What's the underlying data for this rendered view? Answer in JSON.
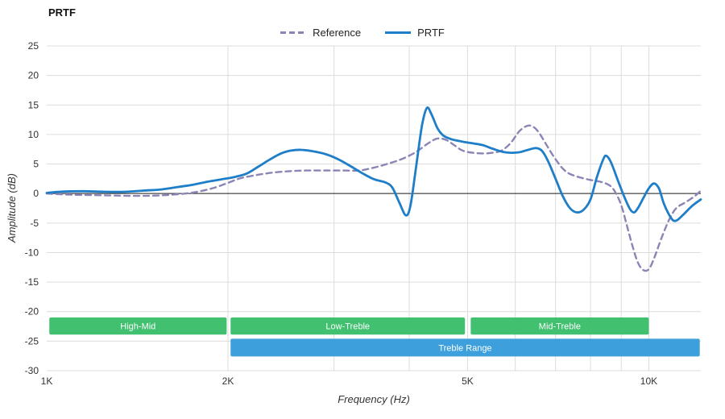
{
  "title": "PRTF",
  "legend": [
    {
      "label": "Reference",
      "color": "#8a85b5",
      "dashed": true
    },
    {
      "label": "PRTF",
      "color": "#1e7ec8",
      "dashed": false
    }
  ],
  "chart_data": {
    "type": "line",
    "title": "PRTF",
    "xlabel": "Frequency (Hz)",
    "ylabel": "Amplitude (dB)",
    "x_scale": "log",
    "xlim": [
      1000,
      12200
    ],
    "ylim": [
      -30,
      25
    ],
    "grid": true,
    "legend_position": "top-center",
    "y_ticks": [
      25,
      20,
      15,
      10,
      5,
      0,
      -5,
      -10,
      -15,
      -20,
      -25,
      -30
    ],
    "x_ticks": [
      {
        "value": 1000,
        "label": "1K"
      },
      {
        "value": 2000,
        "label": "2K"
      },
      {
        "value": 5000,
        "label": "5K"
      },
      {
        "value": 10000,
        "label": "10K"
      }
    ],
    "x_gridlines": [
      2000,
      3000,
      4000,
      5000,
      6000,
      7000,
      8000,
      9000,
      10000
    ],
    "colors": {
      "grid": "#dcdcdc",
      "zero_line": "#1a1a1a",
      "tick_text": "#333333",
      "band_text": "#ffffff"
    },
    "series": [
      {
        "name": "Reference",
        "color": "#8a85b5",
        "dash": "7 5",
        "width": 2.4,
        "points": [
          [
            1000,
            0.0
          ],
          [
            1100,
            -0.2
          ],
          [
            1250,
            -0.3
          ],
          [
            1400,
            -0.4
          ],
          [
            1550,
            -0.3
          ],
          [
            1700,
            0.0
          ],
          [
            1800,
            0.4
          ],
          [
            1900,
            1.0
          ],
          [
            2000,
            1.8
          ],
          [
            2100,
            2.6
          ],
          [
            2250,
            3.2
          ],
          [
            2400,
            3.6
          ],
          [
            2550,
            3.8
          ],
          [
            2700,
            3.9
          ],
          [
            2900,
            3.9
          ],
          [
            3100,
            3.9
          ],
          [
            3300,
            3.9
          ],
          [
            3500,
            4.4
          ],
          [
            3700,
            5.1
          ],
          [
            3900,
            5.9
          ],
          [
            4100,
            7.0
          ],
          [
            4300,
            8.5
          ],
          [
            4450,
            9.3
          ],
          [
            4600,
            9.1
          ],
          [
            4750,
            8.2
          ],
          [
            4900,
            7.3
          ],
          [
            5100,
            6.9
          ],
          [
            5300,
            6.8
          ],
          [
            5500,
            6.9
          ],
          [
            5700,
            7.3
          ],
          [
            5900,
            8.6
          ],
          [
            6100,
            10.6
          ],
          [
            6300,
            11.5
          ],
          [
            6450,
            11.2
          ],
          [
            6600,
            10.0
          ],
          [
            6800,
            7.8
          ],
          [
            7000,
            5.8
          ],
          [
            7200,
            4.2
          ],
          [
            7400,
            3.3
          ],
          [
            7700,
            2.7
          ],
          [
            8000,
            2.3
          ],
          [
            8300,
            2.0
          ],
          [
            8600,
            1.4
          ],
          [
            8800,
            0.2
          ],
          [
            9000,
            -2.0
          ],
          [
            9200,
            -5.5
          ],
          [
            9400,
            -9.0
          ],
          [
            9600,
            -11.8
          ],
          [
            9800,
            -13.0
          ],
          [
            10000,
            -12.8
          ],
          [
            10200,
            -11.0
          ],
          [
            10500,
            -7.5
          ],
          [
            10800,
            -4.5
          ],
          [
            11100,
            -2.5
          ],
          [
            11500,
            -1.5
          ],
          [
            11900,
            -0.5
          ],
          [
            12200,
            0.5
          ]
        ]
      },
      {
        "name": "PRTF",
        "color": "#1e7ec8",
        "dash": null,
        "width": 2.8,
        "points": [
          [
            1000,
            0.1
          ],
          [
            1050,
            0.3
          ],
          [
            1150,
            0.4
          ],
          [
            1250,
            0.3
          ],
          [
            1350,
            0.3
          ],
          [
            1450,
            0.5
          ],
          [
            1550,
            0.7
          ],
          [
            1650,
            1.1
          ],
          [
            1750,
            1.5
          ],
          [
            1850,
            2.0
          ],
          [
            1950,
            2.4
          ],
          [
            2050,
            2.8
          ],
          [
            2150,
            3.4
          ],
          [
            2250,
            4.6
          ],
          [
            2350,
            5.8
          ],
          [
            2450,
            6.8
          ],
          [
            2550,
            7.3
          ],
          [
            2650,
            7.4
          ],
          [
            2750,
            7.2
          ],
          [
            2900,
            6.7
          ],
          [
            3050,
            5.8
          ],
          [
            3200,
            4.6
          ],
          [
            3350,
            3.4
          ],
          [
            3500,
            2.4
          ],
          [
            3650,
            1.9
          ],
          [
            3750,
            1.0
          ],
          [
            3850,
            -1.5
          ],
          [
            3950,
            -3.7
          ],
          [
            4020,
            -2.0
          ],
          [
            4100,
            4.0
          ],
          [
            4200,
            11.5
          ],
          [
            4280,
            14.5
          ],
          [
            4360,
            13.3
          ],
          [
            4460,
            11.0
          ],
          [
            4560,
            9.8
          ],
          [
            4700,
            9.2
          ],
          [
            4900,
            8.8
          ],
          [
            5100,
            8.5
          ],
          [
            5300,
            8.2
          ],
          [
            5500,
            7.6
          ],
          [
            5700,
            7.1
          ],
          [
            5900,
            6.9
          ],
          [
            6100,
            7.0
          ],
          [
            6300,
            7.4
          ],
          [
            6500,
            7.7
          ],
          [
            6650,
            7.2
          ],
          [
            6800,
            5.5
          ],
          [
            7000,
            2.5
          ],
          [
            7200,
            -0.5
          ],
          [
            7400,
            -2.5
          ],
          [
            7600,
            -3.2
          ],
          [
            7800,
            -2.7
          ],
          [
            8000,
            -1.0
          ],
          [
            8200,
            2.8
          ],
          [
            8400,
            5.8
          ],
          [
            8500,
            6.4
          ],
          [
            8650,
            5.3
          ],
          [
            8900,
            2.0
          ],
          [
            9100,
            -0.5
          ],
          [
            9300,
            -2.6
          ],
          [
            9450,
            -3.2
          ],
          [
            9600,
            -2.4
          ],
          [
            9800,
            -0.7
          ],
          [
            10000,
            0.9
          ],
          [
            10200,
            1.7
          ],
          [
            10400,
            0.8
          ],
          [
            10600,
            -1.8
          ],
          [
            10900,
            -4.2
          ],
          [
            11100,
            -4.6
          ],
          [
            11400,
            -3.6
          ],
          [
            11800,
            -2.1
          ],
          [
            12200,
            -1.0
          ]
        ]
      }
    ],
    "bands": [
      {
        "label": "High-Mid",
        "color": "#41c170",
        "from": 1010,
        "to": 1990,
        "db_top": -21.0,
        "db_bottom": -23.9
      },
      {
        "label": "Low-Treble",
        "color": "#41c170",
        "from": 2020,
        "to": 4950,
        "db_top": -21.0,
        "db_bottom": -23.9
      },
      {
        "label": "Mid-Treble",
        "color": "#41c170",
        "from": 5060,
        "to": 10000,
        "db_top": -21.0,
        "db_bottom": -23.9
      },
      {
        "label": "Treble Range",
        "color": "#3da0dc",
        "from": 2020,
        "to": 12150,
        "db_top": -24.6,
        "db_bottom": -27.6
      }
    ]
  }
}
